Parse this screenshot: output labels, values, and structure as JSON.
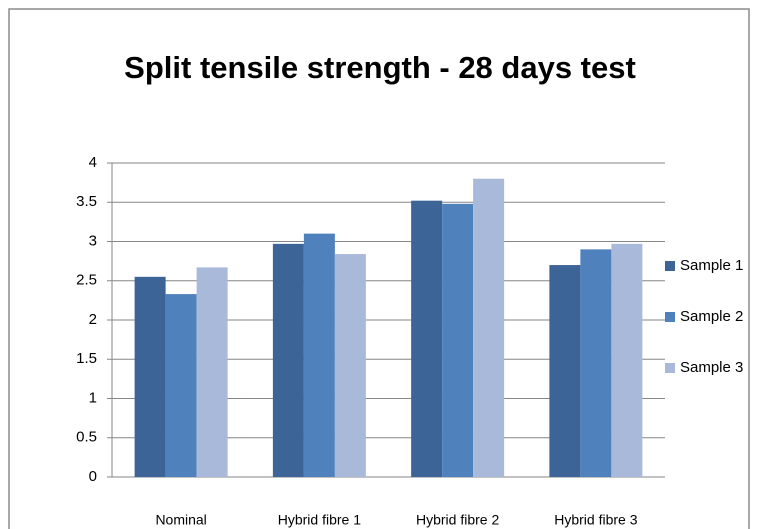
{
  "chart_data": {
    "type": "bar",
    "title": "Split tensile strength - 28 days test",
    "categories": [
      "Nominal",
      "Hybrid fibre 1",
      "Hybrid fibre 2",
      "Hybrid fibre 3"
    ],
    "series": [
      {
        "name": "Sample 1",
        "color": "#3c6496",
        "values": [
          2.55,
          2.97,
          3.52,
          2.7
        ]
      },
      {
        "name": "Sample 2",
        "color": "#4f81bd",
        "values": [
          2.33,
          3.1,
          3.48,
          2.9
        ]
      },
      {
        "name": "Sample 3",
        "color": "#a9b9d9",
        "values": [
          2.67,
          2.84,
          3.8,
          2.97
        ]
      }
    ],
    "ylim": [
      0,
      4
    ],
    "yticks": [
      0,
      0.5,
      1,
      1.5,
      2,
      2.5,
      3,
      3.5,
      4
    ],
    "grid": true,
    "legend": "right"
  }
}
